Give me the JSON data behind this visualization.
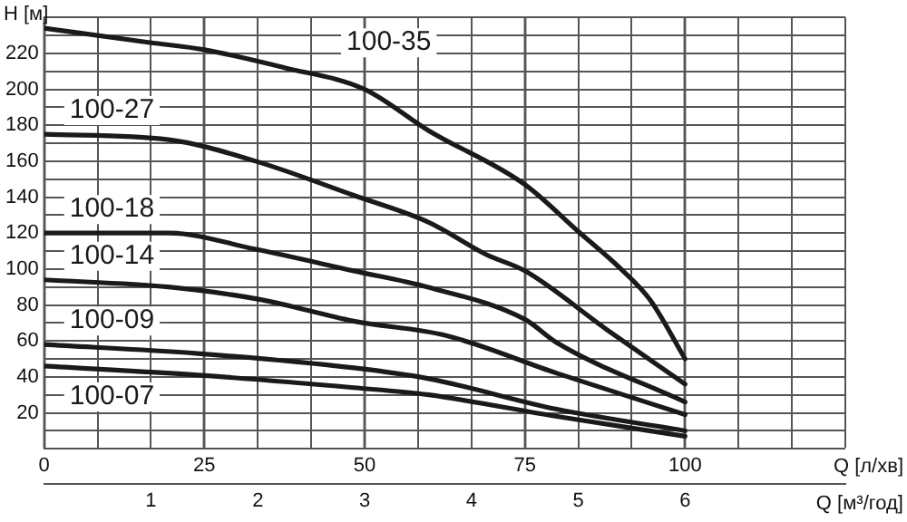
{
  "chart_data": {
    "type": "line",
    "xlabel": "Q [л/хв]",
    "x2label": "Q [м³/год]",
    "ylabel": "H [м]",
    "xlim": [
      0,
      125
    ],
    "xticks": [
      0,
      25,
      50,
      75,
      100
    ],
    "x2lim": [
      0,
      7.5
    ],
    "x2ticks": [
      {
        "value": 0.5,
        "label": null
      },
      1,
      {
        "value": 1.5,
        "label": null
      },
      2,
      {
        "value": 2.5,
        "label": null
      },
      3,
      {
        "value": 3.5,
        "label": null
      },
      4,
      {
        "value": 4.5,
        "label": null
      },
      5,
      {
        "value": 5.5,
        "label": null
      },
      6,
      {
        "value": 6.5,
        "label": null
      },
      {
        "value": 7,
        "label": null
      },
      {
        "value": 7.5,
        "label": null
      }
    ],
    "ylim": [
      0,
      240
    ],
    "yticks": [
      {
        "value": 0,
        "label": null
      },
      {
        "value": 10,
        "label": null
      },
      20,
      {
        "value": 30,
        "label": null
      },
      40,
      {
        "value": 50,
        "label": null
      },
      60,
      {
        "value": 70,
        "label": null
      },
      80,
      {
        "value": 90,
        "label": null
      },
      100,
      {
        "value": 110,
        "label": null
      },
      120,
      {
        "value": 130,
        "label": null
      },
      140,
      {
        "value": 150,
        "label": null
      },
      160,
      {
        "value": 170,
        "label": null
      },
      180,
      {
        "value": 190,
        "label": null
      },
      200,
      {
        "value": 210,
        "label": null
      },
      220,
      {
        "value": 230,
        "label": null
      },
      {
        "value": 240,
        "label": null
      }
    ],
    "grid": true,
    "legend": false,
    "marker": "none",
    "line_style": "solid",
    "series": [
      {
        "name": "100-35",
        "color": "#1a1a1a",
        "x": [
          0,
          16.5,
          25,
          37.5,
          50,
          60,
          75,
          83.3,
          90,
          94.5,
          100
        ],
        "values": [
          234,
          226,
          222,
          212,
          200,
          177,
          147,
          121,
          100,
          83,
          50
        ]
      },
      {
        "name": "100-27",
        "color": "#1a1a1a",
        "x": [
          0,
          19.4,
          33,
          48.3,
          60,
          69,
          75,
          87.9,
          100
        ],
        "values": [
          175,
          172,
          160,
          141,
          126,
          108,
          99,
          66,
          36
        ]
      },
      {
        "name": "100-18",
        "color": "#1a1a1a",
        "x": [
          0,
          19.4,
          33,
          48.3,
          59.8,
          75,
          80,
          100
        ],
        "values": [
          120,
          120,
          111,
          99,
          90,
          72,
          59,
          26
        ]
      },
      {
        "name": "100-14",
        "color": "#1a1a1a",
        "x": [
          0,
          19.4,
          33.8,
          48.3,
          62.7,
          80,
          100
        ],
        "values": [
          94,
          90,
          83,
          71,
          63,
          42,
          19
        ]
      },
      {
        "name": "100-09",
        "color": "#1a1a1a",
        "x": [
          0,
          24,
          48.3,
          60,
          80,
          100
        ],
        "values": [
          58,
          53,
          45,
          39,
          22,
          10
        ]
      },
      {
        "name": "100-07",
        "color": "#1a1a1a",
        "x": [
          0,
          24,
          48.3,
          60,
          80,
          100
        ],
        "values": [
          46,
          41,
          34,
          30,
          18,
          7
        ]
      }
    ]
  }
}
